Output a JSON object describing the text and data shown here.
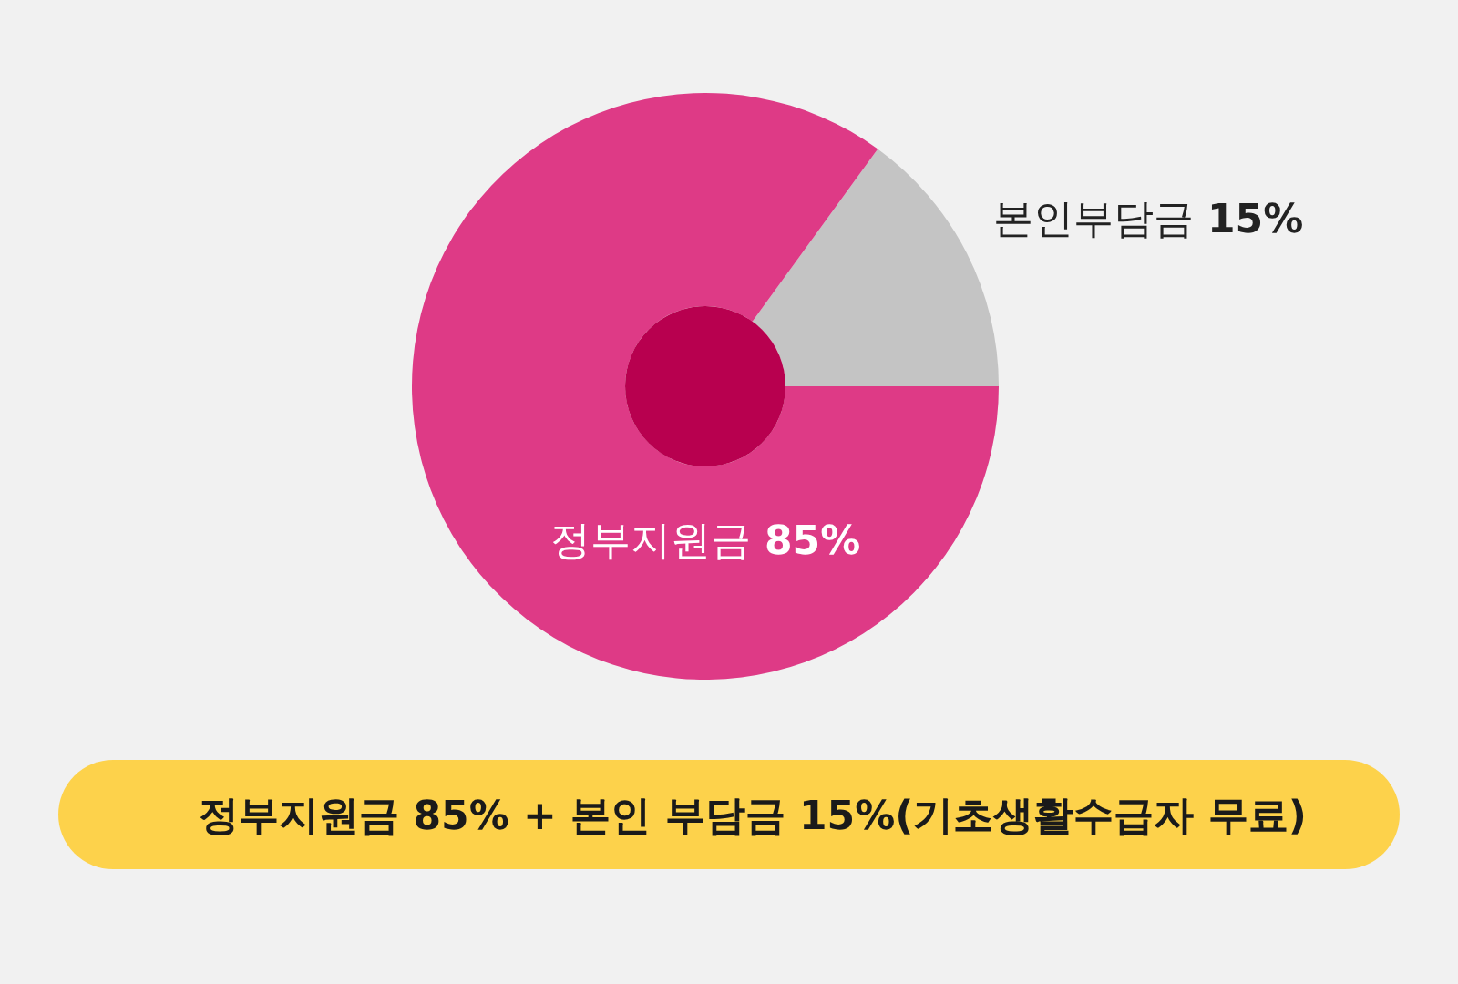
{
  "chart_data": {
    "type": "donut",
    "categories": [
      "본인부담금",
      "정부지원금"
    ],
    "values": [
      15,
      85
    ],
    "colors": [
      "#c4c4c4",
      "#de3a86"
    ],
    "value_labels": [
      "15%",
      "85%"
    ],
    "annotations": [
      "정부지원금 85% + 본인 부담금 15%(기초생활수급자 무료)"
    ]
  }
}
